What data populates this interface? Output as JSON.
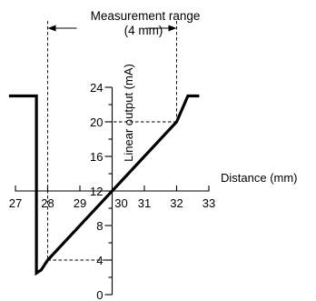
{
  "chart_data": {
    "type": "line",
    "range_label": "Measurement range",
    "range_sublabel": "(4 mm)",
    "xlabel": "Distance (mm)",
    "ylabel": "Linear output (mA)",
    "xlim": [
      27,
      33
    ],
    "ylim": [
      0,
      24
    ],
    "x_ticks": [
      {
        "value": 27,
        "label": "27"
      },
      {
        "value": 28,
        "label": "28"
      },
      {
        "value": 29,
        "label": "29"
      },
      {
        "value": 30,
        "label": "30"
      },
      {
        "value": 31,
        "label": "31"
      },
      {
        "value": 32,
        "label": "32"
      },
      {
        "value": 33,
        "label": "33"
      }
    ],
    "y_ticks": [
      {
        "value": 0,
        "label": "0"
      },
      {
        "value": 4,
        "label": "4"
      },
      {
        "value": 8,
        "label": "8"
      },
      {
        "value": 12,
        "label": "12"
      },
      {
        "value": 16,
        "label": "16"
      },
      {
        "value": 20,
        "label": "20"
      },
      {
        "value": 24,
        "label": "24"
      }
    ],
    "y_minor_ticks": [
      2,
      6,
      10,
      14,
      18,
      22
    ],
    "measurement_range": [
      28,
      32
    ],
    "x_axis_at_y": 12,
    "y_axis_at_x": 30,
    "series": [
      {
        "x": [
          26.8,
          27.65,
          27.65,
          27.65,
          27.8,
          28,
          32,
          32.35,
          32.7
        ],
        "y": [
          23,
          23,
          12,
          2.5,
          2.85,
          4,
          20,
          23,
          23
        ]
      }
    ],
    "guides": [
      {
        "from": [
          28,
          4
        ],
        "to": [
          30,
          4
        ]
      },
      {
        "from": [
          32,
          20
        ],
        "to": [
          30,
          20
        ]
      }
    ]
  }
}
